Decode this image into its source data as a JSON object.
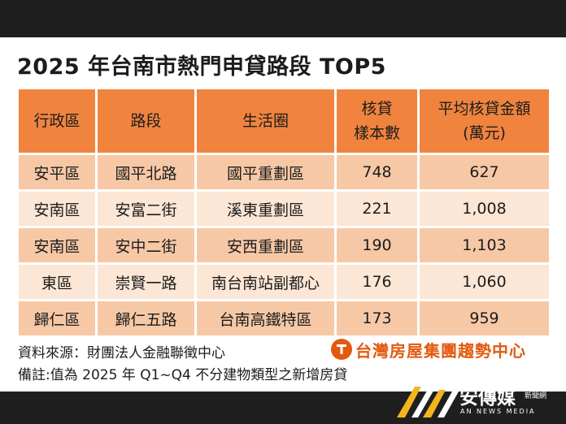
{
  "title": "2025 年台南市熱門申貸路段 TOP5",
  "table": {
    "headers": {
      "district": "行政區",
      "road": "路段",
      "area": "生活圈",
      "samples_l1": "核貸",
      "samples_l2": "樣本數",
      "avg_l1": "平均核貸金額",
      "avg_l2": "(萬元)"
    },
    "rows": [
      {
        "district": "安平區",
        "road": "國平北路",
        "area": "國平重劃區",
        "samples": "748",
        "avg": "627"
      },
      {
        "district": "安南區",
        "road": "安富二街",
        "area": "溪東重劃區",
        "samples": "221",
        "avg": "1,008"
      },
      {
        "district": "安南區",
        "road": "安中二街",
        "area": "安西重劃區",
        "samples": "190",
        "avg": "1,103"
      },
      {
        "district": "東區",
        "road": "崇賢一路",
        "area": "南台南站副都心",
        "samples": "176",
        "avg": "1,060"
      },
      {
        "district": "歸仁區",
        "road": "歸仁五路",
        "area": "台南高鐵特區",
        "samples": "173",
        "avg": "959"
      }
    ]
  },
  "footer": {
    "source": "資料來源：財團法人金融聯徵中心",
    "note": "備註:值為 2025 年 Q1~Q4 不分建物類型之新增房貸"
  },
  "brand": {
    "name": "台灣房屋集團趨勢中心",
    "color": "#e25a0f",
    "icon": "taiwan-realty-logo-icon"
  },
  "watermark": {
    "name": "安傳媒",
    "tag_l1": "不動產",
    "tag_l2": "新聞網",
    "sub": "AN NEWS MEDIA",
    "accent": "#f2b51c"
  },
  "colors": {
    "header": "#f0843f",
    "row_dark": "#f7c8a6",
    "row_light": "#fce6d5"
  }
}
